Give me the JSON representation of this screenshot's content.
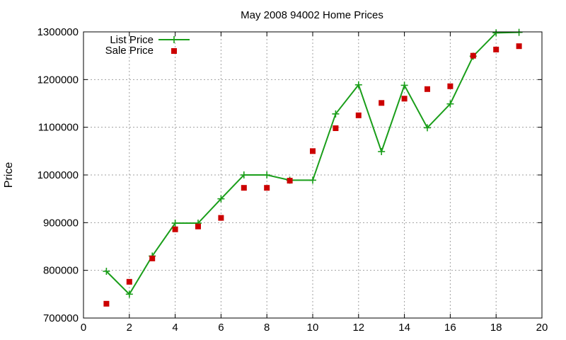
{
  "chart_data": {
    "type": "scatter",
    "title": "May 2008 94002 Home Prices",
    "xlabel": "",
    "ylabel": "Price",
    "xlim": [
      0,
      20
    ],
    "ylim": [
      700000,
      1300000
    ],
    "xticks": [
      0,
      2,
      4,
      6,
      8,
      10,
      12,
      14,
      16,
      18,
      20
    ],
    "yticks": [
      700000,
      800000,
      900000,
      1000000,
      1100000,
      1200000,
      1300000
    ],
    "grid": true,
    "legend_position": "top-left",
    "series": [
      {
        "name": "List Price",
        "style": "line-with-plus-markers",
        "color": "#1a9e1a",
        "x": [
          1,
          2,
          3,
          4,
          5,
          6,
          7,
          8,
          9,
          10,
          11,
          12,
          13,
          14,
          15,
          16,
          17,
          18,
          19
        ],
        "values": [
          798000,
          750000,
          830000,
          899000,
          899000,
          950000,
          1000000,
          1000000,
          989000,
          989000,
          1128000,
          1189000,
          1049000,
          1188000,
          1099000,
          1149000,
          1249000,
          1298000,
          1299000
        ]
      },
      {
        "name": "Sale Price",
        "style": "square-markers",
        "color": "#cc0000",
        "x": [
          1,
          2,
          3,
          4,
          5,
          6,
          7,
          8,
          9,
          10,
          11,
          12,
          13,
          14,
          15,
          16,
          17,
          18,
          19
        ],
        "values": [
          730000,
          776000,
          825000,
          886000,
          892000,
          910000,
          973000,
          973000,
          988000,
          1050000,
          1098000,
          1125000,
          1151000,
          1160000,
          1180000,
          1186000,
          1250000,
          1263000,
          1270000
        ]
      }
    ]
  }
}
